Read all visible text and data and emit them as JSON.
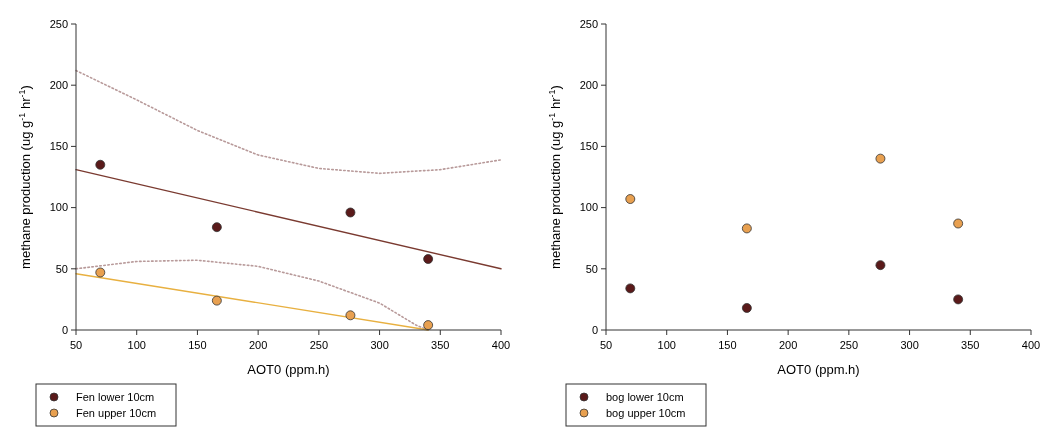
{
  "chart_data": [
    {
      "type": "scatter",
      "xlabel": "AOT0 (ppm.h)",
      "ylabel": "methane production (ug g$^{-1}$ hr$^{-1}$)",
      "xlim": [
        50,
        400
      ],
      "ylim": [
        0,
        250
      ],
      "xticks": [
        50,
        100,
        150,
        200,
        250,
        300,
        350,
        400
      ],
      "yticks": [
        0,
        50,
        100,
        150,
        200,
        250
      ],
      "legend": "bottom left",
      "series": [
        {
          "type": "line",
          "line_style": "dotted",
          "marker": "none",
          "color": "#b89a9a",
          "x": [
            50,
            100,
            150,
            200,
            250,
            300,
            350,
            400
          ],
          "values": [
            212,
            188,
            163,
            143,
            132,
            128,
            131,
            139
          ]
        },
        {
          "type": "line",
          "line_style": "dotted",
          "marker": "none",
          "color": "#b89a9a",
          "x": [
            50,
            100,
            150,
            200,
            250,
            300,
            330,
            340
          ],
          "values": [
            50,
            56,
            57,
            52,
            40,
            22,
            4,
            0
          ]
        },
        {
          "type": "line",
          "line_style": "solid",
          "marker": "none",
          "color": "#7a3a30",
          "x": [
            50,
            400
          ],
          "values": [
            131,
            50
          ]
        },
        {
          "type": "line",
          "line_style": "solid",
          "marker": "none",
          "color": "#e8b040",
          "x": [
            50,
            340
          ],
          "values": [
            46,
            0
          ]
        },
        {
          "name": "Fen lower 10cm",
          "marker": "circle",
          "color": "#5a1a1a",
          "x": [
            70,
            166,
            276,
            340
          ],
          "values": [
            135,
            84,
            96,
            58
          ]
        },
        {
          "name": "Fen upper 10cm",
          "marker": "circle",
          "color": "#e8a050",
          "x": [
            70,
            166,
            276,
            340
          ],
          "values": [
            47,
            24,
            12,
            4
          ]
        }
      ]
    },
    {
      "type": "scatter",
      "xlabel": "AOT0 (ppm.h)",
      "ylabel": "methane production (ug g$^{-1}$ hr$^{-1}$)",
      "xlim": [
        50,
        400
      ],
      "ylim": [
        0,
        250
      ],
      "xticks": [
        50,
        100,
        150,
        200,
        250,
        300,
        350,
        400
      ],
      "yticks": [
        0,
        50,
        100,
        150,
        200,
        250
      ],
      "legend": "bottom left",
      "marker": "circle",
      "series": [
        {
          "name": "bog lower 10cm",
          "color": "#5a1a1a",
          "x": [
            70,
            166,
            276,
            340
          ],
          "values": [
            34,
            18,
            53,
            25
          ]
        },
        {
          "name": "bog upper 10cm",
          "color": "#e8a050",
          "x": [
            70,
            166,
            276,
            340
          ],
          "values": [
            107,
            83,
            140,
            87
          ]
        }
      ]
    }
  ]
}
